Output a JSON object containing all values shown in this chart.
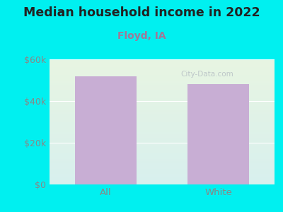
{
  "title": "Median household income in 2022",
  "subtitle": "Floyd, IA",
  "categories": [
    "All",
    "White"
  ],
  "values": [
    52000,
    48000
  ],
  "bar_color": "#c8aed4",
  "background_outer": "#00f0f0",
  "background_inner_top_left": "#e8f5e2",
  "background_inner_bottom_right": "#d8f0ee",
  "title_fontsize": 12.5,
  "title_color": "#222222",
  "subtitle_fontsize": 10,
  "subtitle_color": "#a07898",
  "tick_label_color": "#888888",
  "ylim": [
    0,
    60000
  ],
  "yticks": [
    0,
    20000,
    40000,
    60000
  ],
  "ytick_labels": [
    "$0",
    "$20k",
    "$40k",
    "$60k"
  ],
  "watermark": "City-Data.com"
}
